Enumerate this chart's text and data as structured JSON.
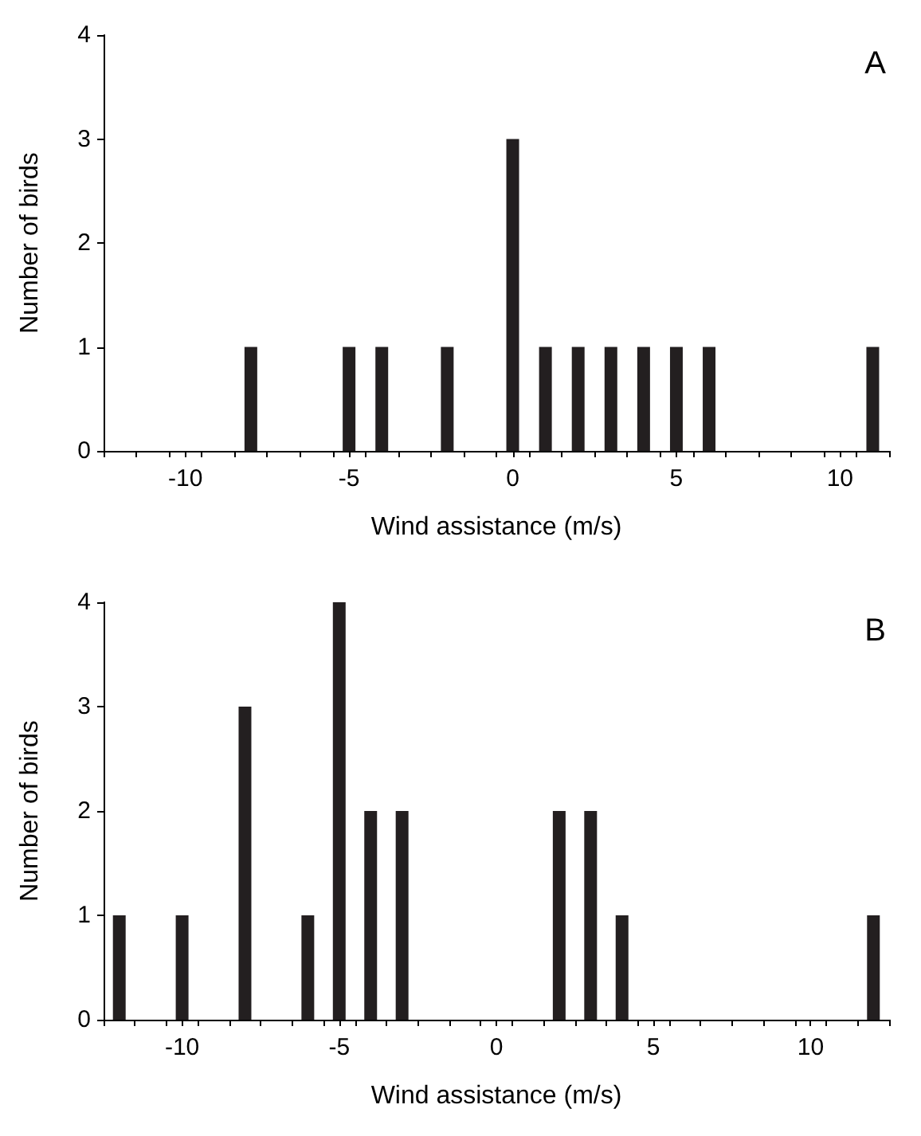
{
  "chart_data": [
    {
      "type": "bar",
      "x": [
        -8,
        -5,
        -4,
        -2,
        0,
        1,
        2,
        3,
        4,
        5,
        6,
        11
      ],
      "values": [
        1,
        1,
        1,
        1,
        3,
        1,
        1,
        1,
        1,
        1,
        1,
        1
      ],
      "color": "#231f20",
      "xlabel": "Wind assistance (m/s)",
      "ylabel": "Number of birds",
      "annotations": [
        "A"
      ],
      "xlim": [
        -12.5,
        11.5
      ],
      "xticks": [
        {
          "value": -12.5,
          "label": null
        },
        {
          "value": -11.5,
          "label": null
        },
        {
          "value": -10.5,
          "label": null
        },
        -10,
        {
          "value": -9.5,
          "label": null
        },
        {
          "value": -8.5,
          "label": null
        },
        {
          "value": -7.5,
          "label": null
        },
        {
          "value": -6.5,
          "label": null
        },
        {
          "value": -5.5,
          "label": null
        },
        -5,
        {
          "value": -4.5,
          "label": null
        },
        {
          "value": -3.5,
          "label": null
        },
        {
          "value": -2.5,
          "label": null
        },
        {
          "value": -1.5,
          "label": null
        },
        {
          "value": -0.5,
          "label": null
        },
        0,
        {
          "value": 0.5,
          "label": null
        },
        {
          "value": 1.5,
          "label": null
        },
        {
          "value": 2.5,
          "label": null
        },
        {
          "value": 3.5,
          "label": null
        },
        {
          "value": 4.5,
          "label": null
        },
        5,
        {
          "value": 5.5,
          "label": null
        },
        {
          "value": 6.5,
          "label": null
        },
        {
          "value": 7.5,
          "label": null
        },
        {
          "value": 8.5,
          "label": null
        },
        {
          "value": 9.5,
          "label": null
        },
        10,
        {
          "value": 10.5,
          "label": null
        },
        {
          "value": 11.5,
          "label": null
        }
      ],
      "ylim": [
        0,
        4
      ],
      "yticks": [
        0,
        1,
        2,
        3,
        4
      ],
      "grid": false
    },
    {
      "type": "bar",
      "x": [
        -12,
        -10,
        -8,
        -6,
        -5,
        -4,
        -3,
        2,
        3,
        4,
        12
      ],
      "values": [
        1,
        1,
        3,
        1,
        4,
        2,
        2,
        2,
        2,
        1,
        1
      ],
      "color": "#231f20",
      "xlabel": "Wind assistance (m/s)",
      "ylabel": "Number of birds",
      "annotations": [
        "B"
      ],
      "xlim": [
        -12.5,
        12.5
      ],
      "xticks": [
        {
          "value": -12.5,
          "label": null
        },
        {
          "value": -11.5,
          "label": null
        },
        {
          "value": -10.5,
          "label": null
        },
        -10,
        {
          "value": -9.5,
          "label": null
        },
        {
          "value": -8.5,
          "label": null
        },
        {
          "value": -7.5,
          "label": null
        },
        {
          "value": -6.5,
          "label": null
        },
        {
          "value": -5.5,
          "label": null
        },
        -5,
        {
          "value": -4.5,
          "label": null
        },
        {
          "value": -3.5,
          "label": null
        },
        {
          "value": -2.5,
          "label": null
        },
        {
          "value": -1.5,
          "label": null
        },
        {
          "value": -0.5,
          "label": null
        },
        0,
        {
          "value": 0.5,
          "label": null
        },
        {
          "value": 1.5,
          "label": null
        },
        {
          "value": 2.5,
          "label": null
        },
        {
          "value": 3.5,
          "label": null
        },
        {
          "value": 4.5,
          "label": null
        },
        5,
        {
          "value": 5.5,
          "label": null
        },
        {
          "value": 6.5,
          "label": null
        },
        {
          "value": 7.5,
          "label": null
        },
        {
          "value": 8.5,
          "label": null
        },
        {
          "value": 9.5,
          "label": null
        },
        10,
        {
          "value": 10.5,
          "label": null
        },
        {
          "value": 11.5,
          "label": null
        },
        {
          "value": 12.5,
          "label": null
        }
      ],
      "ylim": [
        0,
        4
      ],
      "yticks": [
        0,
        1,
        2,
        3,
        4
      ],
      "grid": false
    }
  ]
}
